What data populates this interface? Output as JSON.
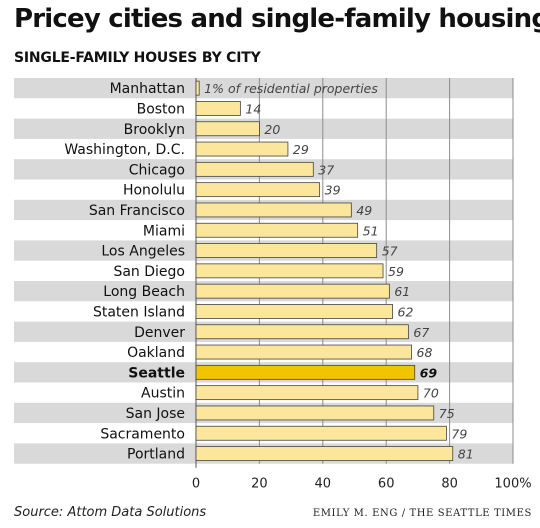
{
  "header": {
    "title": "Pricey cities and single-family housing",
    "subtitle": "SINGLE-FAMILY HOUSES BY CITY"
  },
  "footer": {
    "source": "Source: Attom Data Solutions",
    "credit": "EMILY M. ENG / THE SEATTLE TIMES"
  },
  "colors": {
    "bar": "#fbe69b",
    "bar_highlight": "#f0c400",
    "bar_stroke": "#444444",
    "row_shade": "#d9d9d9",
    "gridline": "#8c8c8c"
  },
  "chart_data": {
    "type": "bar",
    "orientation": "horizontal",
    "title": "Pricey cities and single-family housing",
    "subtitle": "SINGLE-FAMILY HOUSES BY CITY",
    "categories": [
      "Manhattan",
      "Boston",
      "Brooklyn",
      "Washington, D.C.",
      "Chicago",
      "Honolulu",
      "San Francisco",
      "Miami",
      "Los Angeles",
      "San Diego",
      "Long Beach",
      "Staten Island",
      "Denver",
      "Oakland",
      "Seattle",
      "Austin",
      "San Jose",
      "Sacramento",
      "Portland"
    ],
    "values": [
      1,
      14,
      20,
      29,
      37,
      39,
      49,
      51,
      57,
      59,
      61,
      62,
      67,
      68,
      69,
      70,
      75,
      79,
      81
    ],
    "value_labels": [
      "1% of residential properties",
      "14",
      "20",
      "29",
      "37",
      "39",
      "49",
      "51",
      "57",
      "59",
      "61",
      "62",
      "67",
      "68",
      "69",
      "70",
      "75",
      "79",
      "81"
    ],
    "highlight": "Seattle",
    "xlim": [
      0,
      100
    ],
    "xticks": [
      0,
      20,
      40,
      60,
      80,
      100
    ],
    "xtick_labels": [
      "0",
      "20",
      "40",
      "60",
      "80",
      "100%"
    ],
    "grid": true,
    "source": "Source: Attom Data Solutions"
  }
}
